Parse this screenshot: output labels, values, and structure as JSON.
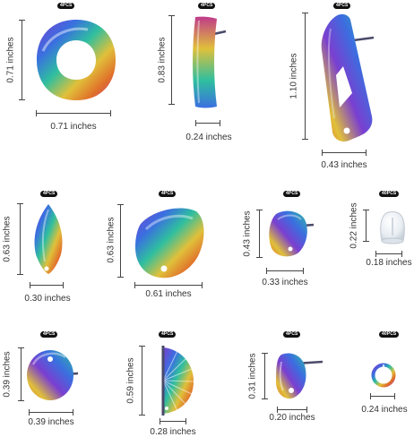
{
  "colors": {
    "badge_bg": "#111111",
    "badge_text": "#ffffff",
    "dimension_line": "#444444",
    "rainbow": [
      "#7a3fd0",
      "#3a6fe0",
      "#2fbf9f",
      "#e0c03a",
      "#e0702a",
      "#c03a8a"
    ],
    "clear_rubber": "#eef2f6"
  },
  "items": [
    {
      "name": "donut-ring-charm",
      "qty": "4PCS",
      "width": "0.71 inches",
      "height": "0.71 inches"
    },
    {
      "name": "curved-bar-stud",
      "qty": "4PCS",
      "width": "0.24 inches",
      "height": "0.83 inches"
    },
    {
      "name": "kite-open-stud",
      "qty": "4PCS",
      "width": "0.43 inches",
      "height": "1.10 inches"
    },
    {
      "name": "marquise-charm",
      "qty": "4PCS",
      "width": "0.30 inches",
      "height": "0.63 inches"
    },
    {
      "name": "petal-charm",
      "qty": "4PCS",
      "width": "0.61 inches",
      "height": "0.63 inches"
    },
    {
      "name": "petal-stud",
      "qty": "4PCS",
      "width": "0.33 inches",
      "height": "0.43 inches"
    },
    {
      "name": "rubber-ear-nut",
      "qty": "40PCS",
      "width": "0.18 inches",
      "height": "0.22 inches"
    },
    {
      "name": "round-disc-stud",
      "qty": "4PCS",
      "width": "0.39 inches",
      "height": "0.39 inches"
    },
    {
      "name": "fan-shell-stud",
      "qty": "4PCS",
      "width": "0.28 inches",
      "height": "0.59 inches"
    },
    {
      "name": "teardrop-stud",
      "qty": "4PCS",
      "width": "0.20 inches",
      "height": "0.31 inches"
    },
    {
      "name": "jump-ring",
      "qty": "40PCS",
      "width": "0.24 inches",
      "height": ""
    }
  ]
}
